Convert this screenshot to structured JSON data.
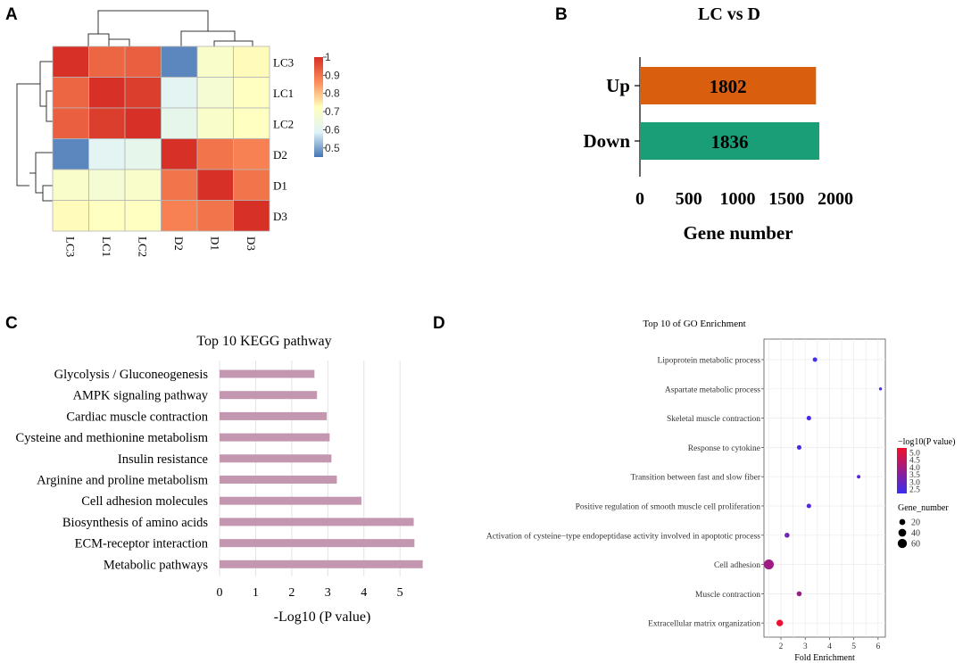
{
  "panels": {
    "a": "A",
    "b": "B",
    "c": "C",
    "d": "D"
  },
  "chart_data": [
    {
      "id": "heatmap",
      "type": "heatmap",
      "rows": [
        "LC3",
        "LC1",
        "LC2",
        "D2",
        "D1",
        "D3"
      ],
      "columns": [
        "LC3",
        "LC1",
        "LC2",
        "D2",
        "D1",
        "D3"
      ],
      "values": [
        [
          1.0,
          0.92,
          0.93,
          0.47,
          0.7,
          0.73
        ],
        [
          0.92,
          1.0,
          0.98,
          0.6,
          0.68,
          0.72
        ],
        [
          0.93,
          0.98,
          1.0,
          0.62,
          0.7,
          0.72
        ],
        [
          0.47,
          0.6,
          0.62,
          1.0,
          0.9,
          0.88
        ],
        [
          0.7,
          0.68,
          0.7,
          0.9,
          1.0,
          0.9
        ],
        [
          0.73,
          0.72,
          0.72,
          0.88,
          0.9,
          1.0
        ]
      ],
      "colorbar": {
        "ticks": [
          "1",
          "0.9",
          "0.8",
          "0.7",
          "0.6",
          "0.5"
        ],
        "range": [
          0.45,
          1.0
        ],
        "colors": [
          "#4575b4",
          "#e0f3f8",
          "#ffffbf",
          "#fc8d59",
          "#d73027"
        ]
      }
    },
    {
      "id": "deg_counts",
      "type": "bar",
      "orientation": "horizontal",
      "title": "LC vs D",
      "categories": [
        "Up",
        "Down"
      ],
      "values": [
        1802,
        1836
      ],
      "value_labels": [
        "1802",
        "1836"
      ],
      "colors": [
        "#d95f0e",
        "#1a9e77"
      ],
      "xlabel": "Gene number",
      "xlim": [
        0,
        2000
      ],
      "xticks": [
        "0",
        "500",
        "1000",
        "1500",
        "2000"
      ]
    },
    {
      "id": "kegg",
      "type": "bar",
      "orientation": "horizontal",
      "title": "Top 10 KEGG pathway",
      "categories": [
        "Glycolysis / Gluconeogenesis",
        "AMPK signaling pathway",
        "Cardiac muscle contraction",
        "Cysteine and methionine metabolism",
        "Insulin resistance",
        "Arginine and proline metabolism",
        "Cell adhesion molecules",
        "Biosynthesis of amino acids",
        "ECM-receptor interaction",
        "Metabolic pathways"
      ],
      "values": [
        2.63,
        2.7,
        2.97,
        3.05,
        3.1,
        3.25,
        3.93,
        5.38,
        5.4,
        5.63
      ],
      "bar_color": "#c397b0",
      "xlabel": "-Log10 (P value)",
      "xlim": [
        0,
        5.75
      ],
      "xticks": [
        "0",
        "1",
        "2",
        "3",
        "4",
        "5"
      ]
    },
    {
      "id": "go",
      "type": "scatter",
      "title": "Top 10 of GO Enrichment",
      "categories": [
        "Lipoprotein metabolic process",
        "Aspartate metabolic process",
        "Skeletal muscle contraction",
        "Response to cytokine",
        "Transition between fast and slow fiber",
        "Positive regulation of smooth muscle cell proliferation",
        "Activation of cysteine−type endopeptidase activity involved in apoptotic process",
        "Cell adhesion",
        "Muscle contraction",
        "Extracellular matrix organization"
      ],
      "fold_enrichment": [
        3.4,
        6.1,
        3.15,
        2.75,
        5.2,
        3.15,
        2.25,
        1.5,
        2.75,
        1.95
      ],
      "neg_log10_p": [
        2.3,
        2.2,
        2.4,
        2.4,
        2.6,
        2.6,
        3.1,
        3.9,
        3.9,
        5.2
      ],
      "gene_number": [
        8,
        2,
        9,
        9,
        4,
        9,
        12,
        72,
        12,
        25
      ],
      "xlabel": "Fold Enrichment",
      "xlim": [
        1.3,
        6.3
      ],
      "xticks": [
        "2",
        "3",
        "4",
        "5",
        "6"
      ],
      "color_legend": {
        "title": "−log10(P value)",
        "ticks": [
          "5.0",
          "4.5",
          "4.0",
          "3.5",
          "3.0",
          "2.5"
        ],
        "range": [
          2.2,
          5.3
        ],
        "low_color": "#3b2cf2",
        "high_color": "#f20f2a"
      },
      "size_legend": {
        "title": "Gene_number",
        "entries": [
          20,
          40,
          60
        ],
        "labels": [
          "20",
          "40",
          "60"
        ]
      }
    }
  ]
}
